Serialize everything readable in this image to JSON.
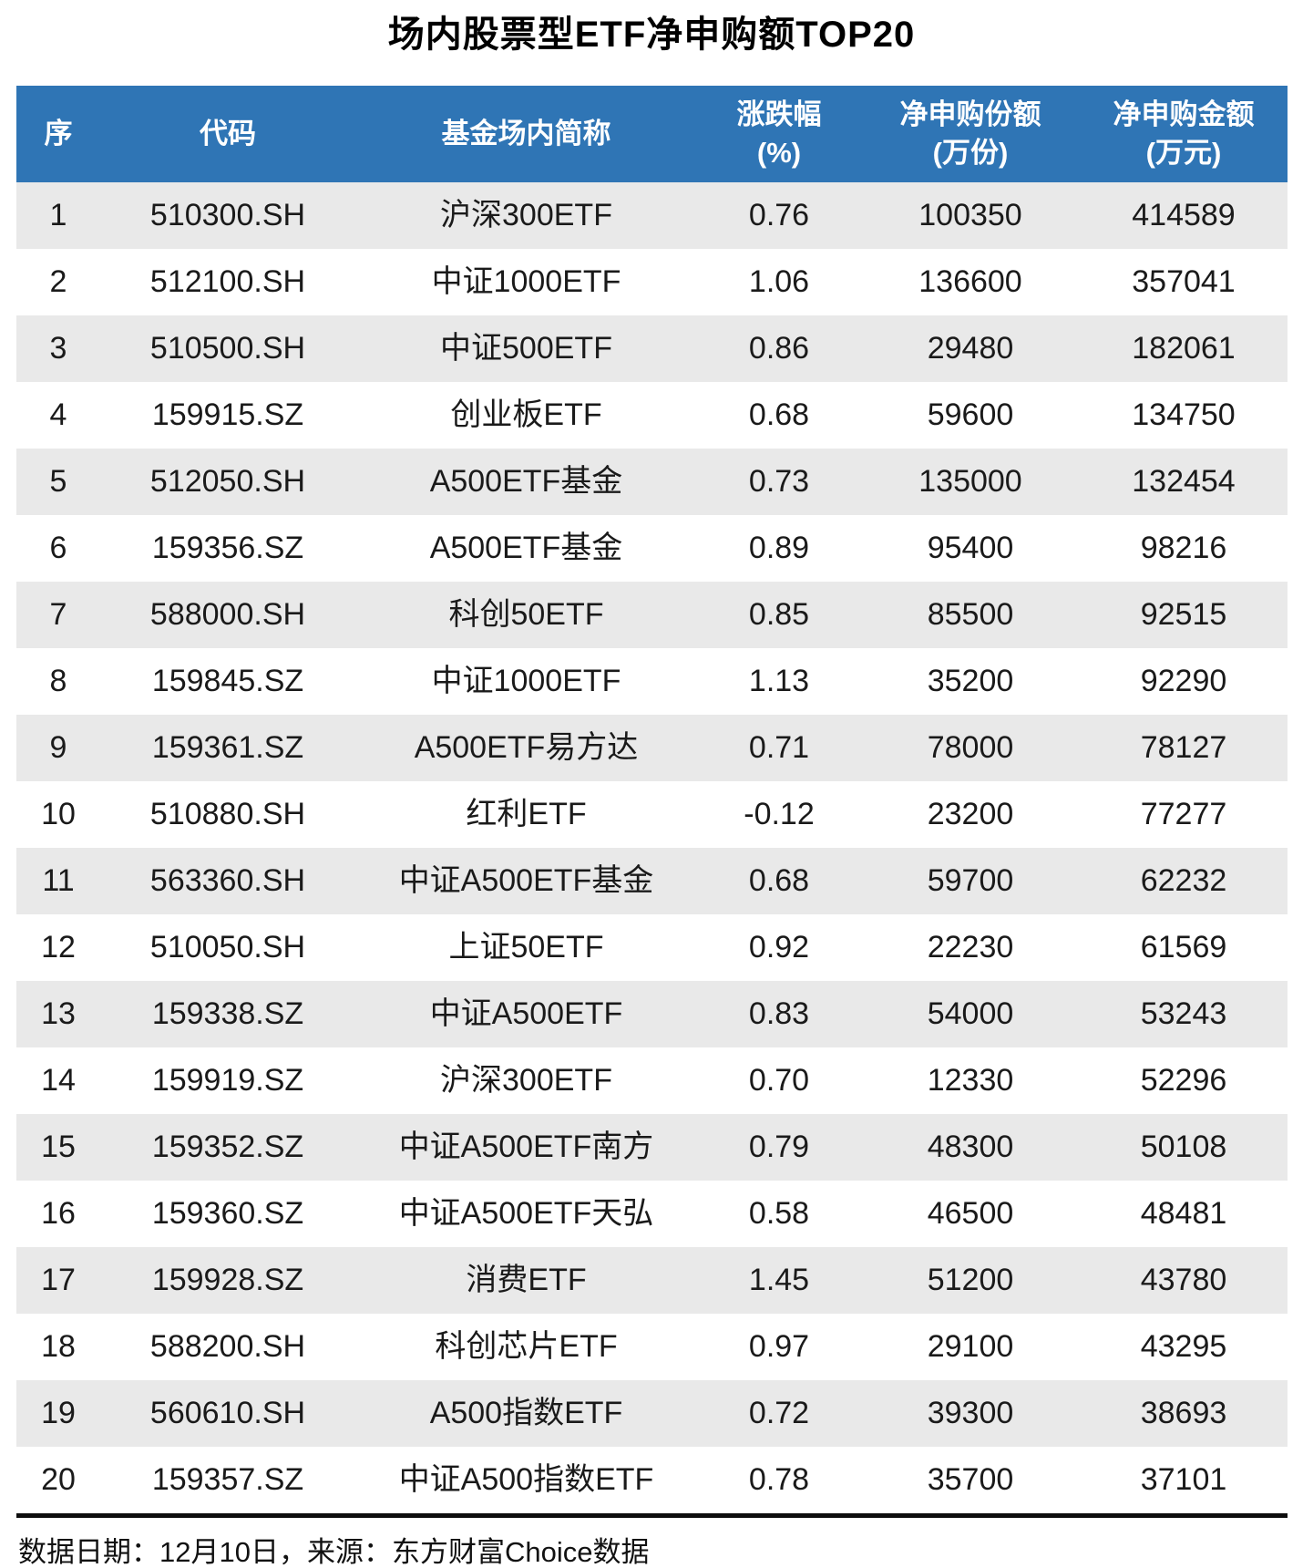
{
  "title": "场内股票型ETF净申购额TOP20",
  "chart_data": {
    "type": "table",
    "title": "场内股票型ETF净申购额TOP20",
    "columns": [
      [
        "序",
        ""
      ],
      [
        "代码",
        ""
      ],
      [
        "基金场内简称",
        ""
      ],
      [
        "涨跌幅",
        "(%)"
      ],
      [
        "净申购份额",
        "(万份)"
      ],
      [
        "净申购金额",
        "(万元)"
      ]
    ],
    "rows": [
      [
        "1",
        "510300.SH",
        "沪深300ETF",
        "0.76",
        "100350",
        "414589"
      ],
      [
        "2",
        "512100.SH",
        "中证1000ETF",
        "1.06",
        "136600",
        "357041"
      ],
      [
        "3",
        "510500.SH",
        "中证500ETF",
        "0.86",
        "29480",
        "182061"
      ],
      [
        "4",
        "159915.SZ",
        "创业板ETF",
        "0.68",
        "59600",
        "134750"
      ],
      [
        "5",
        "512050.SH",
        "A500ETF基金",
        "0.73",
        "135000",
        "132454"
      ],
      [
        "6",
        "159356.SZ",
        "A500ETF基金",
        "0.89",
        "95400",
        "98216"
      ],
      [
        "7",
        "588000.SH",
        "科创50ETF",
        "0.85",
        "85500",
        "92515"
      ],
      [
        "8",
        "159845.SZ",
        "中证1000ETF",
        "1.13",
        "35200",
        "92290"
      ],
      [
        "9",
        "159361.SZ",
        "A500ETF易方达",
        "0.71",
        "78000",
        "78127"
      ],
      [
        "10",
        "510880.SH",
        "红利ETF",
        "-0.12",
        "23200",
        "77277"
      ],
      [
        "11",
        "563360.SH",
        "中证A500ETF基金",
        "0.68",
        "59700",
        "62232"
      ],
      [
        "12",
        "510050.SH",
        "上证50ETF",
        "0.92",
        "22230",
        "61569"
      ],
      [
        "13",
        "159338.SZ",
        "中证A500ETF",
        "0.83",
        "54000",
        "53243"
      ],
      [
        "14",
        "159919.SZ",
        "沪深300ETF",
        "0.70",
        "12330",
        "52296"
      ],
      [
        "15",
        "159352.SZ",
        "中证A500ETF南方",
        "0.79",
        "48300",
        "50108"
      ],
      [
        "16",
        "159360.SZ",
        "中证A500ETF天弘",
        "0.58",
        "46500",
        "48481"
      ],
      [
        "17",
        "159928.SZ",
        "消费ETF",
        "1.45",
        "51200",
        "43780"
      ],
      [
        "18",
        "588200.SH",
        "科创芯片ETF",
        "0.97",
        "29100",
        "43295"
      ],
      [
        "19",
        "560610.SH",
        "A500指数ETF",
        "0.72",
        "39300",
        "38693"
      ],
      [
        "20",
        "159357.SZ",
        "中证A500指数ETF",
        "0.78",
        "35700",
        "37101"
      ]
    ],
    "legend": "none",
    "grid": "off"
  },
  "footer": {
    "text": "数据日期：12月10日，来源：东方财富Choice数据"
  },
  "colors": {
    "header_bg": "#2F75B5",
    "header_text": "#FFFFFF",
    "row_alt_bg": "#E9E9E9",
    "text_color": "#1A1A1A"
  }
}
